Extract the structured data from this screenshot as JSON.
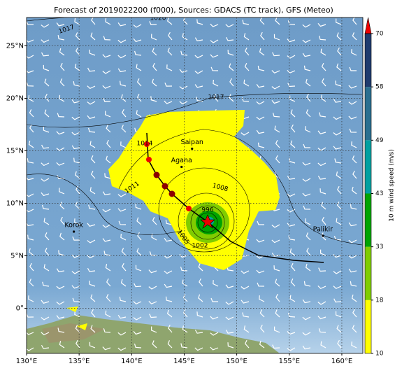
{
  "map": {
    "title": "Forecast of 2019022200 (f000), Sources: GDACS (TC track), GFS (Meteo)",
    "xlim": [
      130,
      162
    ],
    "ylim": [
      -4.3,
      27.7
    ],
    "xticks": [
      {
        "value": 130,
        "label": "130°E"
      },
      {
        "value": 135,
        "label": "135°E"
      },
      {
        "value": 140,
        "label": "140°E"
      },
      {
        "value": 145,
        "label": "145°E"
      },
      {
        "value": 150,
        "label": "150°E"
      },
      {
        "value": 155,
        "label": "155°E"
      },
      {
        "value": 160,
        "label": "160°E"
      }
    ],
    "yticks": [
      {
        "value": 0,
        "label": "0°"
      },
      {
        "value": 5,
        "label": "5°N"
      },
      {
        "value": 10,
        "label": "10°N"
      },
      {
        "value": 15,
        "label": "15°N"
      },
      {
        "value": 20,
        "label": "20°N"
      },
      {
        "value": 25,
        "label": "25°N"
      }
    ],
    "places": [
      {
        "name": "Saipan",
        "lon": 145.75,
        "lat": 15.2
      },
      {
        "name": "Agana",
        "lon": 144.75,
        "lat": 13.47
      },
      {
        "name": "Korok",
        "lon": 134.5,
        "lat": 7.3
      },
      {
        "name": "Palikir",
        "lon": 158.2,
        "lat": 6.9
      }
    ],
    "isobar_labels": [
      "1017",
      "1017",
      "1014",
      "1011",
      "1008",
      "1005",
      "1002",
      "996",
      "1020"
    ],
    "colorbar": {
      "label": "10 m wind speed (m/s)",
      "ticks": [
        10,
        18,
        33,
        43,
        49,
        58,
        70
      ],
      "colors": [
        "#ffff00",
        "#80cc00",
        "#00a400",
        "#00a0a0",
        "#2b6f90",
        "#1f3b6e"
      ],
      "extend_color": "#ee0000"
    }
  }
}
